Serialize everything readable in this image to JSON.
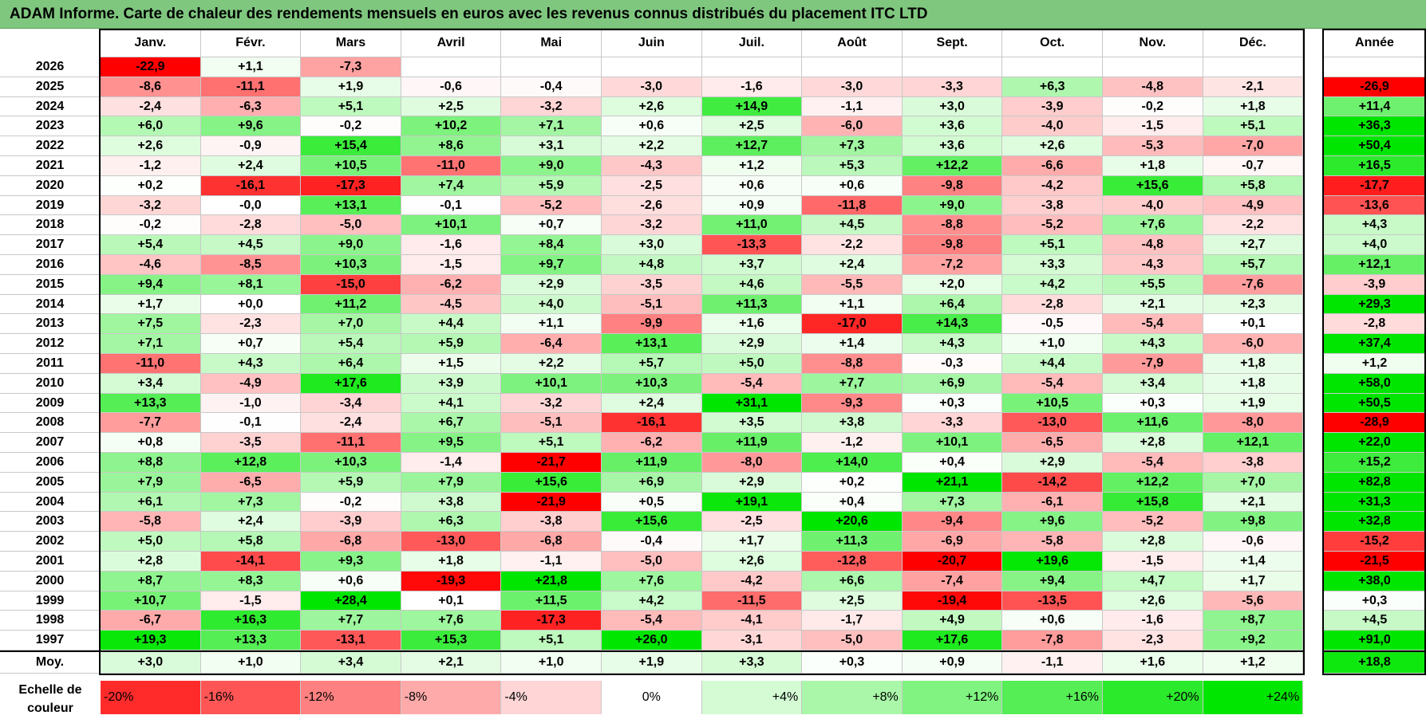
{
  "title": "ADAM Informe. Carte de chaleur des rendements mensuels en euros avec les revenus connus distribués du placement ITC LTD",
  "chart_data": {
    "type": "heatmap",
    "title": "ADAM Informe. Carte de chaleur des rendements mensuels en euros avec les revenus connus distribués du placement ITC LTD",
    "columns": [
      "Janv.",
      "Févr.",
      "Mars",
      "Avril",
      "Mai",
      "Juin",
      "Juil.",
      "Août",
      "Sept.",
      "Oct.",
      "Nov.",
      "Déc."
    ],
    "annual_header": "Année",
    "rows": [
      {
        "year": "2026",
        "values": [
          "-22,9",
          "+1,1",
          "-7,3",
          "",
          "",
          "",
          "",
          "",
          "",
          "",
          "",
          ""
        ],
        "annual": ""
      },
      {
        "year": "2025",
        "values": [
          "-8,6",
          "-11,1",
          "+1,9",
          "-0,6",
          "-0,4",
          "-3,0",
          "-1,6",
          "-3,0",
          "-3,3",
          "+6,3",
          "-4,8",
          "-2,1"
        ],
        "annual": "-26,9"
      },
      {
        "year": "2024",
        "values": [
          "-2,4",
          "-6,3",
          "+5,1",
          "+2,5",
          "-3,2",
          "+2,6",
          "+14,9",
          "-1,1",
          "+3,0",
          "-3,9",
          "-0,2",
          "+1,8"
        ],
        "annual": "+11,4"
      },
      {
        "year": "2023",
        "values": [
          "+6,0",
          "+9,6",
          "-0,2",
          "+10,2",
          "+7,1",
          "+0,6",
          "+2,5",
          "-6,0",
          "+3,6",
          "-4,0",
          "-1,5",
          "+5,1"
        ],
        "annual": "+36,3"
      },
      {
        "year": "2022",
        "values": [
          "+2,6",
          "-0,9",
          "+15,4",
          "+8,6",
          "+3,1",
          "+2,2",
          "+12,7",
          "+7,3",
          "+3,6",
          "+2,6",
          "-5,3",
          "-7,0"
        ],
        "annual": "+50,4"
      },
      {
        "year": "2021",
        "values": [
          "-1,2",
          "+2,4",
          "+10,5",
          "-11,0",
          "+9,0",
          "-4,3",
          "+1,2",
          "+5,3",
          "+12,2",
          "-6,6",
          "+1,8",
          "-0,7"
        ],
        "annual": "+16,5"
      },
      {
        "year": "2020",
        "values": [
          "+0,2",
          "-16,1",
          "-17,3",
          "+7,4",
          "+5,9",
          "-2,5",
          "+0,6",
          "+0,6",
          "-9,8",
          "-4,2",
          "+15,6",
          "+5,8"
        ],
        "annual": "-17,7"
      },
      {
        "year": "2019",
        "values": [
          "-3,2",
          "-0,0",
          "+13,1",
          "-0,1",
          "-5,2",
          "-2,6",
          "+0,9",
          "-11,8",
          "+9,0",
          "-3,8",
          "-4,0",
          "-4,9"
        ],
        "annual": "-13,6"
      },
      {
        "year": "2018",
        "values": [
          "-0,2",
          "-2,8",
          "-5,0",
          "+10,1",
          "+0,7",
          "-3,2",
          "+11,0",
          "+4,5",
          "-8,8",
          "-5,2",
          "+7,6",
          "-2,2"
        ],
        "annual": "+4,3"
      },
      {
        "year": "2017",
        "values": [
          "+5,4",
          "+4,5",
          "+9,0",
          "-1,6",
          "+8,4",
          "+3,0",
          "-13,3",
          "-2,2",
          "-9,8",
          "+5,1",
          "-4,8",
          "+2,7"
        ],
        "annual": "+4,0"
      },
      {
        "year": "2016",
        "values": [
          "-4,6",
          "-8,5",
          "+10,3",
          "-1,5",
          "+9,7",
          "+4,8",
          "+3,7",
          "+2,4",
          "-7,2",
          "+3,3",
          "-4,3",
          "+5,7"
        ],
        "annual": "+12,1"
      },
      {
        "year": "2015",
        "values": [
          "+9,4",
          "+8,1",
          "-15,0",
          "-6,2",
          "+2,9",
          "-3,5",
          "+4,6",
          "-5,5",
          "+2,0",
          "+4,2",
          "+5,5",
          "-7,6"
        ],
        "annual": "-3,9"
      },
      {
        "year": "2014",
        "values": [
          "+1,7",
          "+0,0",
          "+11,2",
          "-4,5",
          "+4,0",
          "-5,1",
          "+11,3",
          "+1,1",
          "+6,4",
          "-2,8",
          "+2,1",
          "+2,3"
        ],
        "annual": "+29,3"
      },
      {
        "year": "2013",
        "values": [
          "+7,5",
          "-2,3",
          "+7,0",
          "+4,4",
          "+1,1",
          "-9,9",
          "+1,6",
          "-17,0",
          "+14,3",
          "-0,5",
          "-5,4",
          "+0,1"
        ],
        "annual": "-2,8"
      },
      {
        "year": "2012",
        "values": [
          "+7,1",
          "+0,7",
          "+5,4",
          "+5,9",
          "-6,4",
          "+13,1",
          "+2,9",
          "+1,4",
          "+4,3",
          "+1,0",
          "+4,3",
          "-6,0"
        ],
        "annual": "+37,4"
      },
      {
        "year": "2011",
        "values": [
          "-11,0",
          "+4,3",
          "+6,4",
          "+1,5",
          "+2,2",
          "+5,7",
          "+5,0",
          "-8,8",
          "-0,3",
          "+4,4",
          "-7,9",
          "+1,8"
        ],
        "annual": "+1,2"
      },
      {
        "year": "2010",
        "values": [
          "+3,4",
          "-4,9",
          "+17,6",
          "+3,9",
          "+10,1",
          "+10,3",
          "-5,4",
          "+7,7",
          "+6,9",
          "-5,4",
          "+3,4",
          "+1,8"
        ],
        "annual": "+58,0"
      },
      {
        "year": "2009",
        "values": [
          "+13,3",
          "-1,0",
          "-3,4",
          "+4,1",
          "-3,2",
          "+2,4",
          "+31,1",
          "-9,3",
          "+0,3",
          "+10,5",
          "+0,3",
          "+1,9"
        ],
        "annual": "+50,5"
      },
      {
        "year": "2008",
        "values": [
          "-7,7",
          "-0,1",
          "-2,4",
          "+6,7",
          "-5,1",
          "-16,1",
          "+3,5",
          "+3,8",
          "-3,3",
          "-13,0",
          "+11,6",
          "-8,0"
        ],
        "annual": "-28,9"
      },
      {
        "year": "2007",
        "values": [
          "+0,8",
          "-3,5",
          "-11,1",
          "+9,5",
          "+5,1",
          "-6,2",
          "+11,9",
          "-1,2",
          "+10,1",
          "-6,5",
          "+2,8",
          "+12,1"
        ],
        "annual": "+22,0"
      },
      {
        "year": "2006",
        "values": [
          "+8,8",
          "+12,8",
          "+10,3",
          "-1,4",
          "-21,7",
          "+11,9",
          "-8,0",
          "+14,0",
          "+0,4",
          "+2,9",
          "-5,4",
          "-3,8"
        ],
        "annual": "+15,2"
      },
      {
        "year": "2005",
        "values": [
          "+7,9",
          "-6,5",
          "+5,9",
          "+7,9",
          "+15,6",
          "+6,9",
          "+2,9",
          "+0,2",
          "+21,1",
          "-14,2",
          "+12,2",
          "+7,0"
        ],
        "annual": "+82,8"
      },
      {
        "year": "2004",
        "values": [
          "+6,1",
          "+7,3",
          "-0,2",
          "+3,8",
          "-21,9",
          "+0,5",
          "+19,1",
          "+0,4",
          "+7,3",
          "-6,1",
          "+15,8",
          "+2,1"
        ],
        "annual": "+31,3"
      },
      {
        "year": "2003",
        "values": [
          "-5,8",
          "+2,4",
          "-3,9",
          "+6,3",
          "-3,8",
          "+15,6",
          "-2,5",
          "+20,6",
          "-9,4",
          "+9,6",
          "-5,2",
          "+9,8"
        ],
        "annual": "+32,8"
      },
      {
        "year": "2002",
        "values": [
          "+5,0",
          "+5,8",
          "-6,8",
          "-13,0",
          "-6,8",
          "-0,4",
          "+1,7",
          "+11,3",
          "-6,9",
          "-5,8",
          "+2,8",
          "-0,6"
        ],
        "annual": "-15,2"
      },
      {
        "year": "2001",
        "values": [
          "+2,8",
          "-14,1",
          "+9,3",
          "+1,8",
          "-1,1",
          "-5,0",
          "+2,6",
          "-12,8",
          "-20,7",
          "+19,6",
          "-1,5",
          "+1,4"
        ],
        "annual": "-21,5"
      },
      {
        "year": "2000",
        "values": [
          "+8,7",
          "+8,3",
          "+0,6",
          "-19,3",
          "+21,8",
          "+7,6",
          "-4,2",
          "+6,6",
          "-7,4",
          "+9,4",
          "+4,7",
          "+1,7"
        ],
        "annual": "+38,0"
      },
      {
        "year": "1999",
        "values": [
          "+10,7",
          "-1,5",
          "+28,4",
          "+0,1",
          "+11,5",
          "+4,2",
          "-11,5",
          "+2,5",
          "-19,4",
          "-13,5",
          "+2,6",
          "-5,6"
        ],
        "annual": "+0,3"
      },
      {
        "year": "1998",
        "values": [
          "-6,7",
          "+16,3",
          "+7,7",
          "+7,6",
          "-17,3",
          "-5,4",
          "-4,1",
          "-1,7",
          "+4,9",
          "+0,6",
          "-1,6",
          "+8,7"
        ],
        "annual": "+4,5"
      },
      {
        "year": "1997",
        "values": [
          "+19,3",
          "+13,3",
          "-13,1",
          "+15,3",
          "+5,1",
          "+26,0",
          "-3,1",
          "-5,0",
          "+17,6",
          "-7,8",
          "-2,3",
          "+9,2"
        ],
        "annual": "+91,0"
      }
    ],
    "average": {
      "label": "Moy.",
      "values": [
        "+3,0",
        "+1,0",
        "+3,4",
        "+2,1",
        "+1,0",
        "+1,9",
        "+3,3",
        "+0,3",
        "+0,9",
        "-1,1",
        "+1,6",
        "+1,2"
      ],
      "annual": "+18,8"
    },
    "scale": {
      "label_line1": "Echelle de",
      "label_line2": "couleur",
      "stops": [
        "-20%",
        "-16%",
        "-12%",
        "-8%",
        "-4%",
        "0%",
        "+4%",
        "+8%",
        "+12%",
        "+16%",
        "+20%",
        "+24%"
      ],
      "values": [
        -20,
        -16,
        -12,
        -8,
        -4,
        0,
        4,
        8,
        12,
        16,
        20,
        24
      ]
    },
    "colors": {
      "negative_max": "#ff0000",
      "neutral": "#ffffff",
      "positive_max": "#00e600"
    }
  }
}
